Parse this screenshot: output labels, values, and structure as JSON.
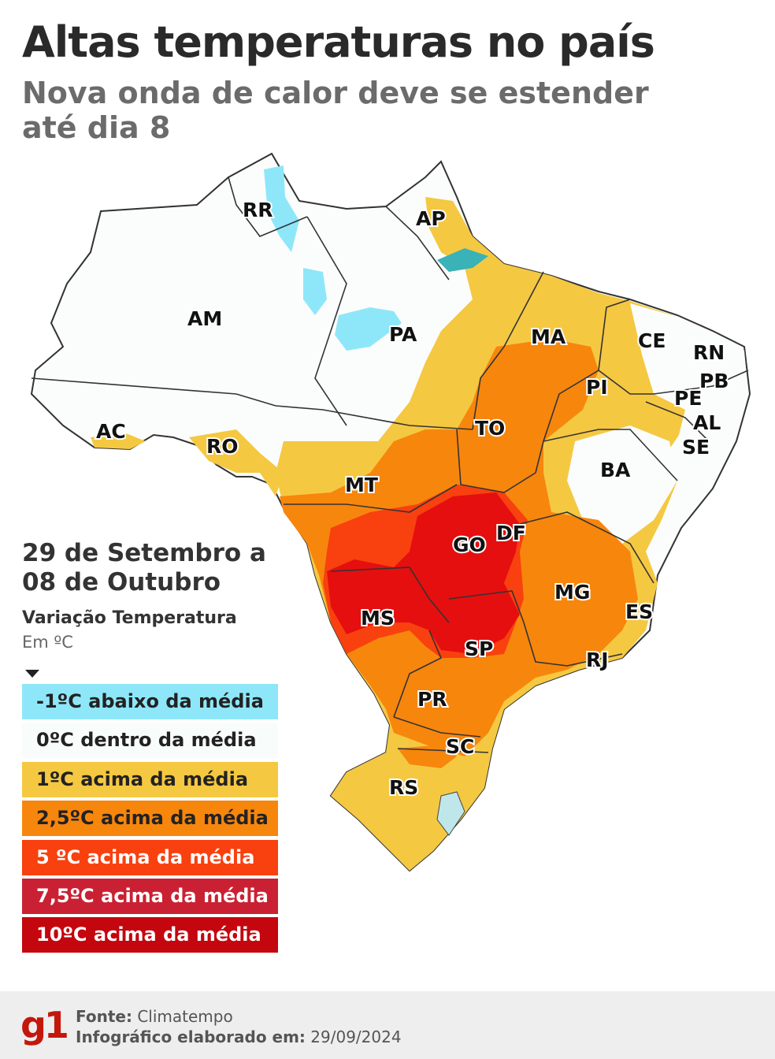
{
  "header": {
    "title": "Altas temperaturas no país",
    "subtitle": "Nova onda de calor deve se estender até dia 8"
  },
  "map": {
    "states": [
      {
        "abbr": "RR"
      },
      {
        "abbr": "AP"
      },
      {
        "abbr": "AM"
      },
      {
        "abbr": "PA"
      },
      {
        "abbr": "MA"
      },
      {
        "abbr": "CE"
      },
      {
        "abbr": "RN"
      },
      {
        "abbr": "PB"
      },
      {
        "abbr": "PE"
      },
      {
        "abbr": "AL"
      },
      {
        "abbr": "SE"
      },
      {
        "abbr": "PI"
      },
      {
        "abbr": "AC"
      },
      {
        "abbr": "RO"
      },
      {
        "abbr": "TO"
      },
      {
        "abbr": "BA"
      },
      {
        "abbr": "MT"
      },
      {
        "abbr": "DF"
      },
      {
        "abbr": "GO"
      },
      {
        "abbr": "MG"
      },
      {
        "abbr": "ES"
      },
      {
        "abbr": "MS"
      },
      {
        "abbr": "SP"
      },
      {
        "abbr": "RJ"
      },
      {
        "abbr": "PR"
      },
      {
        "abbr": "SC"
      },
      {
        "abbr": "RS"
      }
    ]
  },
  "period": "29 de Setembro a 08 de Outubro",
  "legend": {
    "title": "Variação Temperatura",
    "unit": "Em ºC",
    "items": [
      {
        "label": "-1ºC abaixo da média",
        "color": "#8ee7f9",
        "text_color": "#222222"
      },
      {
        "label": "0ºC dentro da média",
        "color": "#f8fcfb",
        "text_color": "#222222"
      },
      {
        "label": "1ºC acima da média",
        "color": "#f5c842",
        "text_color": "#222222"
      },
      {
        "label": "2,5ºC acima da média",
        "color": "#f7860d",
        "text_color": "#222222"
      },
      {
        "label": "5 ºC acima da média",
        "color": "#f9400f",
        "text_color": "#ffffff"
      },
      {
        "label": "7,5ºC acima da média",
        "color": "#c92133",
        "text_color": "#ffffff"
      },
      {
        "label": "10ºC acima da média",
        "color": "#c4060f",
        "text_color": "#ffffff"
      }
    ]
  },
  "footer": {
    "logo": "g1",
    "source_label": "Fonte:",
    "source_value": "Climatempo",
    "made_label": "Infográfico elaborado em:",
    "made_value": "29/09/2024"
  }
}
